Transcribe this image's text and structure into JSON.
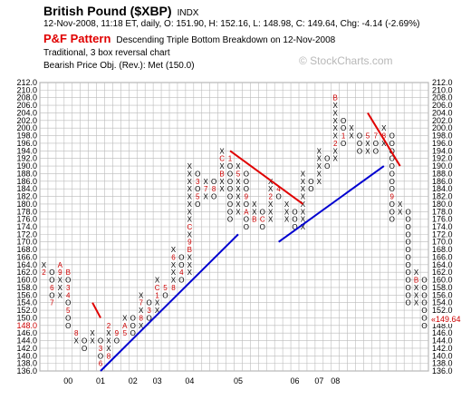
{
  "header": {
    "title": "British Pound ($XBP)",
    "symbol_index": "INDX",
    "info": "12-Nov-2008, 11:18 ET, daily, O: 151.90, H: 152.16, L: 148.98, C: 149.64, Chg: -4.14 (-2.69%)",
    "pf_label": "P&F Pattern",
    "pattern": "Descending Triple Bottom Breakdown on 12-Nov-2008",
    "chart_type": "Traditional, 3 box reversal chart",
    "objective": "Bearish Price Obj. (Rev.): Met (150.0)"
  },
  "watermark": "© StockCharts.com",
  "colors": {
    "x_mark": "#000000",
    "o_mark": "#000000",
    "month_mark": "#cc0000",
    "month_mark_alt": "#b0003a",
    "uptrend": "#0000d0",
    "downtrend": "#e00000",
    "grid": "#bbbbbb",
    "last_price": "#cc0000"
  },
  "chart_data": {
    "type": "point-and-figure",
    "box_size": 2,
    "reversal": 3,
    "ylim": [
      136,
      212
    ],
    "y_ticks": [
      136,
      138,
      140,
      142,
      144,
      146,
      148,
      150,
      152,
      154,
      156,
      158,
      160,
      162,
      164,
      166,
      168,
      170,
      172,
      174,
      176,
      178,
      180,
      182,
      184,
      186,
      188,
      190,
      192,
      194,
      196,
      198,
      200,
      202,
      204,
      206,
      208,
      210,
      212
    ],
    "y_tick_labels": [
      "136.0",
      "138.0",
      "140.0",
      "142.0",
      "144.0",
      "146.0",
      "148.0",
      "150.0",
      "152.0",
      "154.0",
      "156.0",
      "158.0",
      "160.0",
      "162.0",
      "164.0",
      "166.0",
      "168.0",
      "170.0",
      "172.0",
      "174.0",
      "176.0",
      "178.0",
      "180.0",
      "182.0",
      "184.0",
      "186.0",
      "188.0",
      "190.0",
      "192.0",
      "194.0",
      "196.0",
      "198.0",
      "200.0",
      "202.0",
      "204.0",
      "206.0",
      "208.0",
      "210.0",
      "212.0"
    ],
    "last_price": 149.64,
    "last_price_label": "149.64",
    "last_price_left_label": "148.0",
    "year_labels": [
      {
        "text": "00",
        "col": 3
      },
      {
        "text": "01",
        "col": 7
      },
      {
        "text": "02",
        "col": 11
      },
      {
        "text": "03",
        "col": 14
      },
      {
        "text": "04",
        "col": 18
      },
      {
        "text": "05",
        "col": 24
      },
      {
        "text": "06",
        "col": 31
      },
      {
        "text": "07",
        "col": 34
      },
      {
        "text": "08",
        "col": 36
      }
    ],
    "columns": [
      {
        "type": "X",
        "low": 162,
        "high": 164
      },
      {
        "type": "O",
        "low": 154,
        "high": 162
      },
      {
        "type": "X",
        "low": 156,
        "high": 164
      },
      {
        "type": "O",
        "low": 148,
        "high": 162
      },
      {
        "type": "X",
        "low": 144,
        "high": 146
      },
      {
        "type": "O",
        "low": 142,
        "high": 144
      },
      {
        "type": "X",
        "low": 144,
        "high": 146
      },
      {
        "type": "O",
        "low": 138,
        "high": 144
      },
      {
        "type": "X",
        "low": 140,
        "high": 148
      },
      {
        "type": "O",
        "low": 144,
        "high": 146
      },
      {
        "type": "X",
        "low": 146,
        "high": 150
      },
      {
        "type": "O",
        "low": 146,
        "high": 150
      },
      {
        "type": "X",
        "low": 148,
        "high": 156
      },
      {
        "type": "O",
        "low": 150,
        "high": 154
      },
      {
        "type": "X",
        "low": 152,
        "high": 160
      },
      {
        "type": "O",
        "low": 156,
        "high": 158
      },
      {
        "type": "X",
        "low": 158,
        "high": 168
      },
      {
        "type": "O",
        "low": 160,
        "high": 166
      },
      {
        "type": "X",
        "low": 162,
        "high": 190
      },
      {
        "type": "O",
        "low": 180,
        "high": 188
      },
      {
        "type": "X",
        "low": 182,
        "high": 186
      },
      {
        "type": "O",
        "low": 182,
        "high": 186
      },
      {
        "type": "X",
        "low": 184,
        "high": 194
      },
      {
        "type": "O",
        "low": 176,
        "high": 192
      },
      {
        "type": "X",
        "low": 178,
        "high": 190
      },
      {
        "type": "O",
        "low": 174,
        "high": 188
      },
      {
        "type": "X",
        "low": 176,
        "high": 180
      },
      {
        "type": "O",
        "low": 174,
        "high": 178
      },
      {
        "type": "X",
        "low": 176,
        "high": 186
      },
      {
        "type": "O",
        "low": 182,
        "high": 184
      },
      {
        "type": "X",
        "low": 176,
        "high": 180
      },
      {
        "type": "O",
        "low": 174,
        "high": 178
      },
      {
        "type": "X",
        "low": 174,
        "high": 188
      },
      {
        "type": "O",
        "low": 184,
        "high": 186
      },
      {
        "type": "X",
        "low": 186,
        "high": 194
      },
      {
        "type": "O",
        "low": 190,
        "high": 192
      },
      {
        "type": "X",
        "low": 192,
        "high": 208
      },
      {
        "type": "O",
        "low": 196,
        "high": 202
      },
      {
        "type": "X",
        "low": 198,
        "high": 200
      },
      {
        "type": "O",
        "low": 194,
        "high": 198
      },
      {
        "type": "X",
        "low": 194,
        "high": 198
      },
      {
        "type": "O",
        "low": 194,
        "high": 198
      },
      {
        "type": "X",
        "low": 196,
        "high": 200
      },
      {
        "type": "O",
        "low": 176,
        "high": 198
      },
      {
        "type": "X",
        "low": 178,
        "high": 180
      },
      {
        "type": "O",
        "low": 154,
        "high": 178
      },
      {
        "type": "X",
        "low": 154,
        "high": 162
      },
      {
        "type": "O",
        "low": 148,
        "high": 160
      }
    ],
    "month_marks": [
      {
        "col": 0,
        "val": 162,
        "text": "2"
      },
      {
        "col": 1,
        "val": 158,
        "text": "6"
      },
      {
        "col": 1,
        "val": 154,
        "text": "7"
      },
      {
        "col": 2,
        "val": 164,
        "text": "A"
      },
      {
        "col": 2,
        "val": 162,
        "text": "9"
      },
      {
        "col": 3,
        "val": 162,
        "text": "B"
      },
      {
        "col": 3,
        "val": 158,
        "text": "3"
      },
      {
        "col": 3,
        "val": 156,
        "text": "4"
      },
      {
        "col": 3,
        "val": 152,
        "text": "5"
      },
      {
        "col": 4,
        "val": 146,
        "text": "8"
      },
      {
        "col": 6,
        "val": 140,
        "text": "B"
      },
      {
        "col": 7,
        "val": 150,
        "text": "1"
      },
      {
        "col": 7,
        "val": 142,
        "text": "3"
      },
      {
        "col": 7,
        "val": 138,
        "text": "6"
      },
      {
        "col": 8,
        "val": 148,
        "text": "2"
      },
      {
        "col": 8,
        "val": 140,
        "text": "8"
      },
      {
        "col": 9,
        "val": 146,
        "text": "9"
      },
      {
        "col": 10,
        "val": 148,
        "text": "A"
      },
      {
        "col": 10,
        "val": 146,
        "text": "5"
      },
      {
        "col": 11,
        "val": 144,
        "text": "6"
      },
      {
        "col": 12,
        "val": 154,
        "text": "7"
      },
      {
        "col": 12,
        "val": 150,
        "text": "8"
      },
      {
        "col": 13,
        "val": 152,
        "text": "3"
      },
      {
        "col": 14,
        "val": 158,
        "text": "C"
      },
      {
        "col": 14,
        "val": 156,
        "text": "1"
      },
      {
        "col": 15,
        "val": 158,
        "text": "5"
      },
      {
        "col": 16,
        "val": 166,
        "text": "6"
      },
      {
        "col": 16,
        "val": 158,
        "text": "8"
      },
      {
        "col": 17,
        "val": 162,
        "text": "4"
      },
      {
        "col": 18,
        "val": 174,
        "text": "C"
      },
      {
        "col": 18,
        "val": 170,
        "text": "9"
      },
      {
        "col": 18,
        "val": 168,
        "text": "B"
      },
      {
        "col": 19,
        "val": 186,
        "text": "3"
      },
      {
        "col": 19,
        "val": 182,
        "text": "5"
      },
      {
        "col": 19,
        "val": 178,
        "text": "B"
      },
      {
        "col": 20,
        "val": 184,
        "text": "7"
      },
      {
        "col": 21,
        "val": 184,
        "text": "8"
      },
      {
        "col": 21,
        "val": 180,
        "text": "A"
      },
      {
        "col": 22,
        "val": 192,
        "text": "C"
      },
      {
        "col": 22,
        "val": 188,
        "text": "B"
      },
      {
        "col": 23,
        "val": 192,
        "text": "1"
      },
      {
        "col": 24,
        "val": 188,
        "text": "5"
      },
      {
        "col": 25,
        "val": 182,
        "text": "9"
      },
      {
        "col": 25,
        "val": 178,
        "text": "A"
      },
      {
        "col": 26,
        "val": 176,
        "text": "B"
      },
      {
        "col": 27,
        "val": 176,
        "text": "C"
      },
      {
        "col": 28,
        "val": 182,
        "text": "2"
      },
      {
        "col": 29,
        "val": 184,
        "text": "4"
      },
      {
        "col": 30,
        "val": 186,
        "text": "6"
      },
      {
        "col": 31,
        "val": 186,
        "text": "8"
      },
      {
        "col": 32,
        "val": 196,
        "text": "C"
      },
      {
        "col": 32,
        "val": 190,
        "text": "B"
      },
      {
        "col": 33,
        "val": 196,
        "text": "4"
      },
      {
        "col": 34,
        "val": 198,
        "text": "C"
      },
      {
        "col": 35,
        "val": 202,
        "text": "7"
      },
      {
        "col": 36,
        "val": 208,
        "text": "B"
      },
      {
        "col": 36,
        "val": 196,
        "text": "2"
      },
      {
        "col": 37,
        "val": 198,
        "text": "1"
      },
      {
        "col": 38,
        "val": 196,
        "text": "3"
      },
      {
        "col": 40,
        "val": 198,
        "text": "5"
      },
      {
        "col": 41,
        "val": 198,
        "text": "7"
      },
      {
        "col": 42,
        "val": 198,
        "text": "8"
      },
      {
        "col": 43,
        "val": 182,
        "text": "9"
      },
      {
        "col": 44,
        "val": 174,
        "text": "A"
      },
      {
        "col": 46,
        "val": 160,
        "text": "B"
      }
    ],
    "trendlines": [
      {
        "kind": "uptrend",
        "from": {
          "col": 7,
          "val": 136
        },
        "to": {
          "col": 24,
          "val": 172
        }
      },
      {
        "kind": "uptrend",
        "from": {
          "col": 29,
          "val": 170
        },
        "to": {
          "col": 42,
          "val": 190
        }
      },
      {
        "kind": "downtrend",
        "from": {
          "col": 6,
          "val": 154
        },
        "to": {
          "col": 7,
          "val": 150
        }
      },
      {
        "kind": "downtrend",
        "from": {
          "col": 23,
          "val": 194
        },
        "to": {
          "col": 32,
          "val": 180
        }
      },
      {
        "kind": "downtrend",
        "from": {
          "col": 40,
          "val": 204
        },
        "to": {
          "col": 44,
          "val": 190
        }
      }
    ]
  }
}
